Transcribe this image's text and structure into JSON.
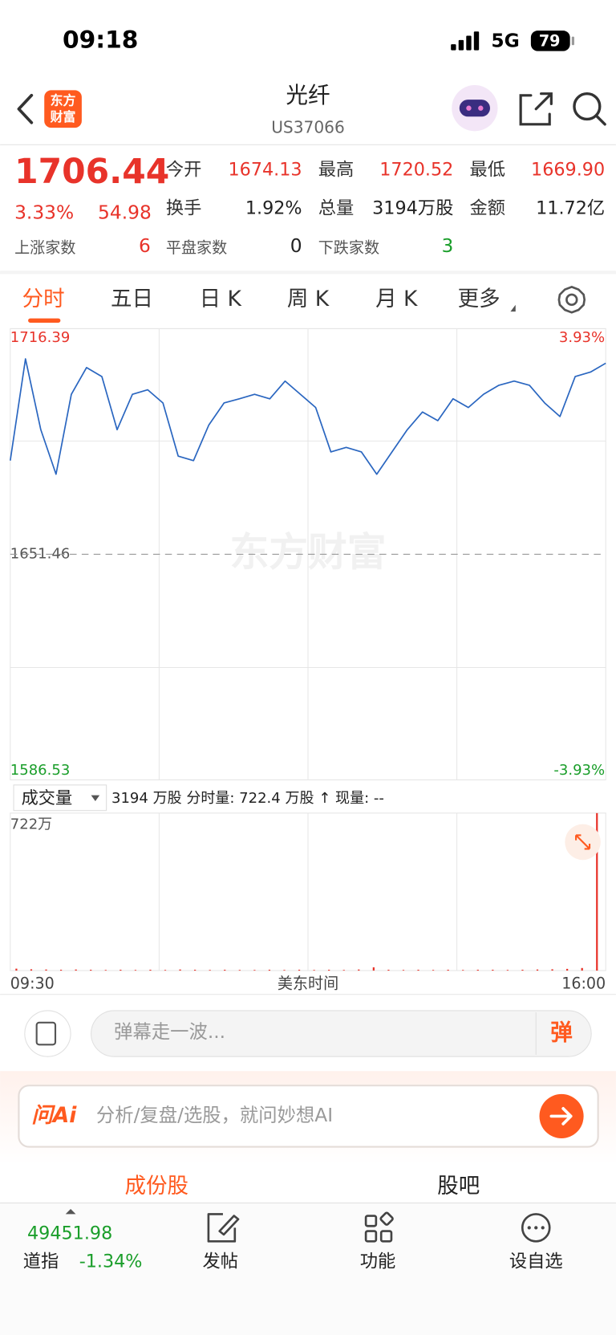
{
  "status_bar": {
    "time": "09:18",
    "network": "5G",
    "battery": "79"
  },
  "header": {
    "logo_lines": [
      "东方",
      "财富"
    ],
    "title": "光纤",
    "code": "US37066"
  },
  "quote": {
    "price": "1706.44",
    "change_pct": "3.33%",
    "change": "54.98",
    "stats": [
      {
        "label": "今开",
        "value": "1674.13"
      },
      {
        "label": "最高",
        "value": "1720.52"
      },
      {
        "label": "最低",
        "value": "1669.90"
      },
      {
        "label": "换手",
        "value": "1.92%"
      },
      {
        "label": "总量",
        "value": "3194万股"
      },
      {
        "label": "金额",
        "value": "11.72亿"
      }
    ],
    "breadth": [
      {
        "label": "上涨家数",
        "value": "6"
      },
      {
        "label": "平盘家数",
        "value": "0"
      },
      {
        "label": "下跌家数",
        "value": "3"
      }
    ]
  },
  "tabs": [
    "分时",
    "五日",
    "日 K",
    "周 K",
    "月 K",
    "更多"
  ],
  "watermark": "东方财富",
  "chart_data": [
    {
      "type": "line",
      "color": "#2a66c0",
      "categories": [
        "09:30",
        null,
        null,
        null,
        null,
        null,
        null,
        null,
        null,
        null,
        null,
        null,
        null,
        null,
        null,
        null,
        null,
        null,
        null,
        null,
        null,
        null,
        null,
        null,
        null,
        null,
        null,
        null,
        null,
        null,
        null,
        null,
        null,
        null,
        null,
        null,
        null,
        null,
        null,
        "16:00"
      ],
      "values": [
        1678.4,
        1707.7,
        1687.3,
        1674.5,
        1697.5,
        1705.2,
        1702.6,
        1687.3,
        1697.5,
        1698.8,
        1695.0,
        1679.7,
        1678.4,
        1688.6,
        1695.0,
        1696.2,
        1697.5,
        1696.2,
        1701.3,
        1697.5,
        1693.7,
        1680.9,
        1682.2,
        1680.9,
        1674.5,
        1680.9,
        1687.3,
        1692.4,
        1689.9,
        1696.2,
        1693.7,
        1697.5,
        1700.1,
        1701.3,
        1700.1,
        1695.0,
        1691.1,
        1702.6,
        1703.9,
        1706.44
      ],
      "ylim": [
        1586.53,
        1716.39
      ],
      "yticks": [
        1716.39,
        1651.46,
        1586.53
      ],
      "y2lim": [
        -3.93,
        3.93
      ],
      "y2ticks": [
        {
          "value": 3.93,
          "label": "3.93%"
        },
        {
          "value": -3.93,
          "label": "-3.93%"
        }
      ],
      "x_label": "美东时间",
      "grid": true
    },
    {
      "type": "bar",
      "color": "#e8332a",
      "selector": "成交量",
      "summary": "3194 万股 分时量: 722.4 万股 ↑ 现量: --",
      "values": [
        9,
        6,
        5,
        4,
        5,
        4,
        3,
        4,
        3,
        4,
        3,
        5,
        4,
        3,
        4,
        3,
        3,
        4,
        3,
        4,
        3,
        4,
        3,
        5,
        15,
        4,
        3,
        4,
        3,
        4,
        3,
        4,
        4,
        3,
        4,
        5,
        6,
        8,
        12,
        722.4
      ],
      "ylim": [
        0,
        722.4
      ],
      "yticks": [
        {
          "value": 722.4,
          "label": "722万"
        }
      ]
    }
  ],
  "comment_bar": {
    "placeholder": "弹幕走一波...",
    "button": "弹"
  },
  "ai_bar": {
    "brand": "问Ai",
    "placeholder": "分析/复盘/选股，就问妙想AI"
  },
  "sub_tabs": [
    "成份股",
    "股吧"
  ],
  "bottom": {
    "index_value": "49451.98",
    "index_name": "道指",
    "index_change": "-1.34%",
    "actions": [
      "发帖",
      "功能",
      "设自选"
    ]
  }
}
